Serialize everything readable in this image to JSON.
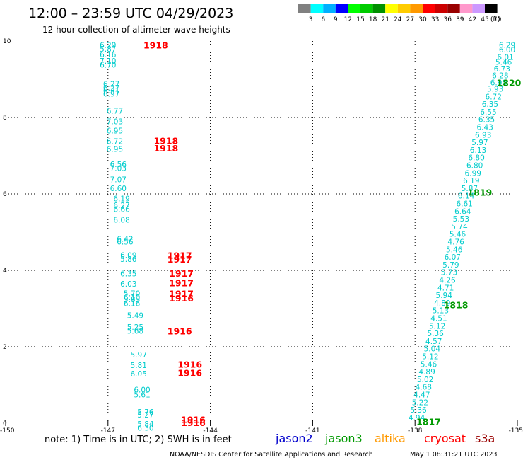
{
  "header": {
    "title": "12:00 – 23:59 UTC 04/29/2023",
    "subtitle": "12 hour collection of altimeter wave heights"
  },
  "colorbar": {
    "unit": "(ft)",
    "colors": [
      "#808080",
      "#00ffff",
      "#00b0ff",
      "#0000ff",
      "#00ff00",
      "#00cc00",
      "#009000",
      "#ffff00",
      "#ffcc00",
      "#ff9900",
      "#ff0000",
      "#cc0000",
      "#990000",
      "#ff99cc",
      "#cc99ff",
      "#000000"
    ],
    "labels": [
      "3",
      "6",
      "9",
      "12",
      "15",
      "18",
      "21",
      "24",
      "27",
      "30",
      "33",
      "36",
      "39",
      "42",
      "45",
      "70"
    ]
  },
  "footer": {
    "note": "note:  1) Time is in UTC;  2) SWH is in feet",
    "missions": [
      {
        "name": "jason2",
        "color": "#0000cc"
      },
      {
        "name": "jason3",
        "color": "#009900"
      },
      {
        "name": "altika",
        "color": "#ff9900"
      },
      {
        "name": "cryosat",
        "color": "#ff0000"
      },
      {
        "name": "s3a",
        "color": "#990000"
      }
    ],
    "credit": "NOAA/NESDIS Center for Satellite Applications and Research",
    "timestamp": "May  1 08:31:21 UTC 2023"
  },
  "chart_data": {
    "type": "scatter",
    "xlim": [
      -150,
      -135
    ],
    "ylim": [
      0,
      10
    ],
    "x_ticks": [
      -150,
      -147,
      -144,
      -141,
      -138,
      -135
    ],
    "x_tick_labels": [
      "-150",
      "-147",
      "-144",
      "-141",
      "-138",
      "-135"
    ],
    "y_ticks": [
      0,
      2,
      4,
      6,
      8,
      10
    ],
    "y_tick_labels": [
      "0",
      "2",
      "4",
      "6",
      "8",
      "10"
    ],
    "grid": "dotted",
    "value_color": "#00cccc",
    "series": [
      {
        "name": "cryosat",
        "color": "#ff0000",
        "points": [
          {
            "x": -147.0,
            "y": 9.9,
            "v": "6.29"
          },
          {
            "x": -147.0,
            "y": 9.8,
            "v": "5.87"
          },
          {
            "x": -147.0,
            "y": 9.65,
            "v": "6.16"
          },
          {
            "x": -147.0,
            "y": 9.48,
            "v": "7.10"
          },
          {
            "x": -147.0,
            "y": 9.38,
            "v": "6.70"
          },
          {
            "x": -146.9,
            "y": 8.88,
            "v": "6.27"
          },
          {
            "x": -146.9,
            "y": 8.78,
            "v": "6.27"
          },
          {
            "x": -146.9,
            "y": 8.7,
            "v": "6.31"
          },
          {
            "x": -146.9,
            "y": 8.62,
            "v": "6.97"
          },
          {
            "x": -146.8,
            "y": 8.18,
            "v": "6.77"
          },
          {
            "x": -146.8,
            "y": 7.9,
            "v": "7.03"
          },
          {
            "x": -146.8,
            "y": 7.66,
            "v": "6.95"
          },
          {
            "x": -146.8,
            "y": 7.38,
            "v": "6.72"
          },
          {
            "x": -146.8,
            "y": 7.18,
            "v": "6.95"
          },
          {
            "x": -146.7,
            "y": 6.78,
            "v": "6.56"
          },
          {
            "x": -146.7,
            "y": 6.68,
            "v": "7.03"
          },
          {
            "x": -146.7,
            "y": 6.38,
            "v": "7.07"
          },
          {
            "x": -146.7,
            "y": 6.15,
            "v": "6.60"
          },
          {
            "x": -146.6,
            "y": 5.88,
            "v": "6.19"
          },
          {
            "x": -146.6,
            "y": 5.7,
            "v": "6.27"
          },
          {
            "x": -146.6,
            "y": 5.6,
            "v": "6.66"
          },
          {
            "x": -146.6,
            "y": 5.32,
            "v": "6.08"
          },
          {
            "x": -146.5,
            "y": 4.82,
            "v": "6.42"
          },
          {
            "x": -146.5,
            "y": 4.75,
            "v": "6.56"
          },
          {
            "x": -146.4,
            "y": 4.4,
            "v": "6.09"
          },
          {
            "x": -146.4,
            "y": 4.3,
            "v": "5.86"
          },
          {
            "x": -146.4,
            "y": 3.92,
            "v": "6.35"
          },
          {
            "x": -146.4,
            "y": 3.65,
            "v": "6.03"
          },
          {
            "x": -146.3,
            "y": 3.4,
            "v": "5.70"
          },
          {
            "x": -146.3,
            "y": 3.3,
            "v": "6.10"
          },
          {
            "x": -146.3,
            "y": 3.24,
            "v": "5.85"
          },
          {
            "x": -146.3,
            "y": 3.14,
            "v": "6.16"
          },
          {
            "x": -146.2,
            "y": 2.82,
            "v": "5.49"
          },
          {
            "x": -146.2,
            "y": 2.52,
            "v": "5.25"
          },
          {
            "x": -146.2,
            "y": 2.42,
            "v": "5.68"
          },
          {
            "x": -146.1,
            "y": 1.8,
            "v": "5.97"
          },
          {
            "x": -146.1,
            "y": 1.52,
            "v": "5.81"
          },
          {
            "x": -146.1,
            "y": 1.3,
            "v": "6.05"
          },
          {
            "x": -146.0,
            "y": 0.88,
            "v": "6.00"
          },
          {
            "x": -146.0,
            "y": 0.75,
            "v": "5.61"
          },
          {
            "x": -145.9,
            "y": 0.3,
            "v": "5.76"
          },
          {
            "x": -145.9,
            "y": 0.22,
            "v": "5.27"
          },
          {
            "x": -145.9,
            "y": -0.02,
            "v": "5.84"
          },
          {
            "x": -145.9,
            "y": -0.12,
            "v": "6.30"
          }
        ]
      },
      {
        "name": "jason3",
        "color": "#009900",
        "points": [
          {
            "x": -135.3,
            "y": 9.9,
            "v": "6.29"
          },
          {
            "x": -135.3,
            "y": 9.78,
            "v": "6.00"
          },
          {
            "x": -135.35,
            "y": 9.58,
            "v": "6.01"
          },
          {
            "x": -135.4,
            "y": 9.45,
            "v": "5.46"
          },
          {
            "x": -135.45,
            "y": 9.28,
            "v": "6.73"
          },
          {
            "x": -135.5,
            "y": 9.1,
            "v": "6.28"
          },
          {
            "x": -135.55,
            "y": 8.92,
            "v": "6.90"
          },
          {
            "x": -135.65,
            "y": 8.75,
            "v": "5.93"
          },
          {
            "x": -135.7,
            "y": 8.55,
            "v": "6.72"
          },
          {
            "x": -135.8,
            "y": 8.35,
            "v": "6.35"
          },
          {
            "x": -135.85,
            "y": 8.15,
            "v": "6.55"
          },
          {
            "x": -135.9,
            "y": 7.95,
            "v": "6.35"
          },
          {
            "x": -135.95,
            "y": 7.75,
            "v": "6.43"
          },
          {
            "x": -136.0,
            "y": 7.55,
            "v": "6.93"
          },
          {
            "x": -136.1,
            "y": 7.35,
            "v": "5.97"
          },
          {
            "x": -136.15,
            "y": 7.15,
            "v": "6.13"
          },
          {
            "x": -136.2,
            "y": 6.95,
            "v": "6.80"
          },
          {
            "x": -136.25,
            "y": 6.75,
            "v": "6.80"
          },
          {
            "x": -136.3,
            "y": 6.55,
            "v": "6.99"
          },
          {
            "x": -136.35,
            "y": 6.35,
            "v": "6.19"
          },
          {
            "x": -136.4,
            "y": 6.15,
            "v": "5.87"
          },
          {
            "x": -136.5,
            "y": 5.95,
            "v": "6.14"
          },
          {
            "x": -136.55,
            "y": 5.75,
            "v": "6.61"
          },
          {
            "x": -136.6,
            "y": 5.55,
            "v": "6.64"
          },
          {
            "x": -136.65,
            "y": 5.35,
            "v": "5.53"
          },
          {
            "x": -136.7,
            "y": 5.15,
            "v": "5.74"
          },
          {
            "x": -136.75,
            "y": 4.95,
            "v": "5.46"
          },
          {
            "x": -136.8,
            "y": 4.75,
            "v": "4.76"
          },
          {
            "x": -136.85,
            "y": 4.55,
            "v": "5.46"
          },
          {
            "x": -136.9,
            "y": 4.35,
            "v": "6.07"
          },
          {
            "x": -136.95,
            "y": 4.15,
            "v": "5.79"
          },
          {
            "x": -137.0,
            "y": 3.95,
            "v": "5.73"
          },
          {
            "x": -137.05,
            "y": 3.75,
            "v": "4.26"
          },
          {
            "x": -137.1,
            "y": 3.55,
            "v": "4.71"
          },
          {
            "x": -137.15,
            "y": 3.35,
            "v": "5.94"
          },
          {
            "x": -137.2,
            "y": 3.15,
            "v": "4.89"
          },
          {
            "x": -137.25,
            "y": 2.95,
            "v": "5.13"
          },
          {
            "x": -137.3,
            "y": 2.75,
            "v": "4.51"
          },
          {
            "x": -137.35,
            "y": 2.55,
            "v": "5.12"
          },
          {
            "x": -137.4,
            "y": 2.35,
            "v": "5.36"
          },
          {
            "x": -137.45,
            "y": 2.15,
            "v": "4.57"
          },
          {
            "x": -137.5,
            "y": 1.95,
            "v": "5.04"
          },
          {
            "x": -137.55,
            "y": 1.75,
            "v": "5.12"
          },
          {
            "x": -137.6,
            "y": 1.55,
            "v": "5.46"
          },
          {
            "x": -137.65,
            "y": 1.35,
            "v": "4.89"
          },
          {
            "x": -137.7,
            "y": 1.15,
            "v": "5.02"
          },
          {
            "x": -137.75,
            "y": 0.95,
            "v": "4.68"
          },
          {
            "x": -137.8,
            "y": 0.75,
            "v": "4.47"
          },
          {
            "x": -137.85,
            "y": 0.55,
            "v": "5.22"
          },
          {
            "x": -137.9,
            "y": 0.35,
            "v": "5.36"
          },
          {
            "x": -137.95,
            "y": 0.15,
            "v": "4.94"
          }
        ]
      }
    ],
    "rev_labels": [
      {
        "x": -145.6,
        "y": 9.9,
        "text": "1918",
        "color": "#ff0000"
      },
      {
        "x": -145.3,
        "y": 7.4,
        "text": "1918",
        "color": "#ff0000"
      },
      {
        "x": -145.3,
        "y": 7.2,
        "text": "1918",
        "color": "#ff0000"
      },
      {
        "x": -144.9,
        "y": 4.4,
        "text": "1917",
        "color": "#ff0000"
      },
      {
        "x": -144.9,
        "y": 4.3,
        "text": "1917",
        "color": "#ff0000"
      },
      {
        "x": -144.85,
        "y": 3.93,
        "text": "1917",
        "color": "#ff0000"
      },
      {
        "x": -144.85,
        "y": 3.68,
        "text": "1917",
        "color": "#ff0000"
      },
      {
        "x": -144.85,
        "y": 3.4,
        "text": "1917",
        "color": "#ff0000"
      },
      {
        "x": -144.85,
        "y": 3.28,
        "text": "1916",
        "color": "#ff0000"
      },
      {
        "x": -144.9,
        "y": 2.42,
        "text": "1916",
        "color": "#ff0000"
      },
      {
        "x": -144.6,
        "y": 1.55,
        "text": "1916",
        "color": "#ff0000"
      },
      {
        "x": -144.6,
        "y": 1.32,
        "text": "1916",
        "color": "#ff0000"
      },
      {
        "x": -144.5,
        "y": 0.1,
        "text": "1916",
        "color": "#ff0000"
      },
      {
        "x": -144.5,
        "y": 0.02,
        "text": "1916",
        "color": "#ff0000"
      },
      {
        "x": -135.25,
        "y": 8.92,
        "text": "1820",
        "color": "#009900"
      },
      {
        "x": -136.1,
        "y": 6.05,
        "text": "1819",
        "color": "#009900"
      },
      {
        "x": -136.8,
        "y": 3.1,
        "text": "1818",
        "color": "#009900"
      },
      {
        "x": -137.6,
        "y": 0.05,
        "text": "1817",
        "color": "#009900"
      }
    ]
  }
}
